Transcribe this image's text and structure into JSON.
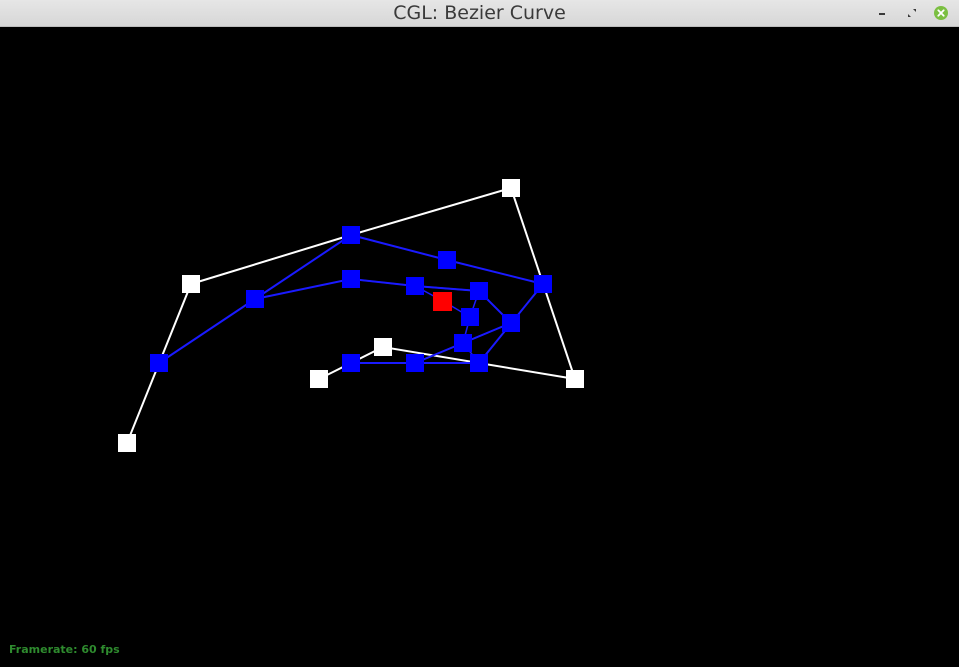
{
  "window": {
    "title": "CGL: Bezier Curve"
  },
  "controls": {
    "minimize_icon": "minimize-icon",
    "maximize_icon": "restore-icon",
    "close_icon": "close-icon"
  },
  "status": {
    "framerate": "Framerate: 60 fps"
  },
  "colors": {
    "background": "#000000",
    "control_points": "#ffffff",
    "intermediate_points": "#0000ff",
    "intermediate_lines": "#1a1aff",
    "curve_point": "#ff0000",
    "framerate_text": "#2e8b2e"
  }
}
